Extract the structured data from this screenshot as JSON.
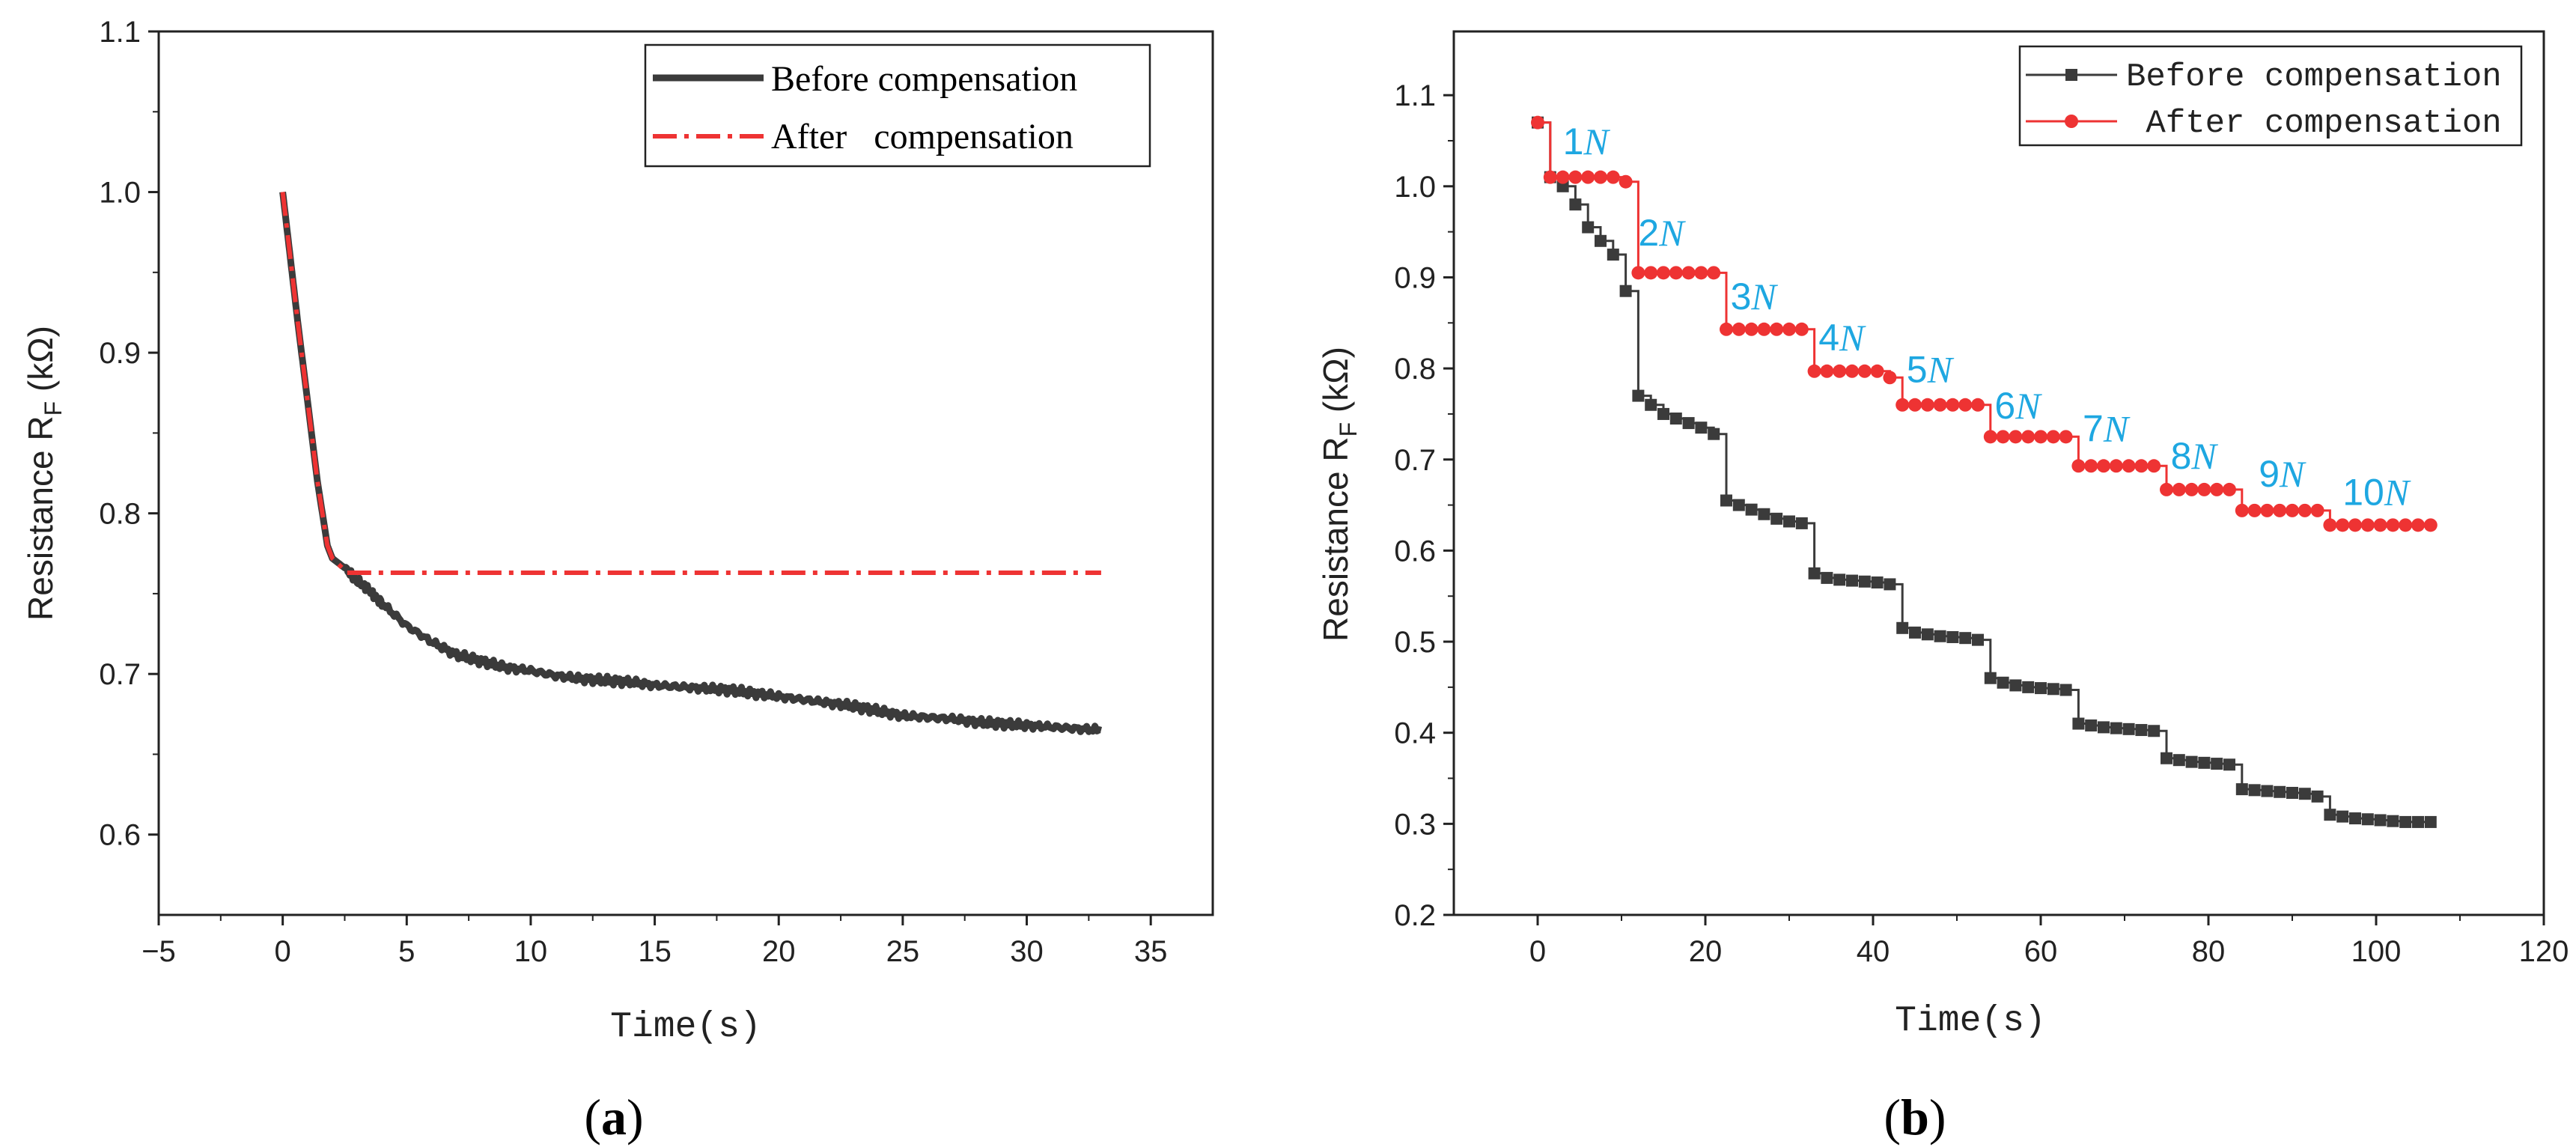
{
  "figure": {
    "panel_a_label": "(a)",
    "panel_b_label": "(b)"
  },
  "colors": {
    "before": "#3b3b3b",
    "after": "#ee3333",
    "annotation": "#1EA7E1",
    "axis": "#222222"
  },
  "chart_data": [
    {
      "id": "a",
      "type": "line",
      "title": "",
      "xlabel": "Time(s)",
      "ylabel": "Resistance  R",
      "ylabel_sub": "F",
      "ylabel_unit": " (kΩ)",
      "xlim": [
        -5,
        37.5
      ],
      "ylim": [
        0.55,
        1.1
      ],
      "xticks": [
        -5,
        0,
        5,
        10,
        15,
        20,
        25,
        30,
        35
      ],
      "yticks": [
        0.6,
        0.7,
        0.8,
        0.9,
        1.0,
        1.1
      ],
      "xtick_labels": [
        "−5",
        "0",
        "5",
        "10",
        "15",
        "20",
        "25",
        "30",
        "35"
      ],
      "ytick_labels": [
        "0.6",
        "0.7",
        "0.8",
        "0.9",
        "1.0",
        "1.1"
      ],
      "legend": {
        "position": "top-right",
        "entries": [
          "Before compensation",
          "After   compensation"
        ]
      },
      "series": [
        {
          "name": "Before compensation",
          "style": "solid-thick",
          "x": [
            0,
            0.3,
            0.6,
            1.0,
            1.4,
            1.8,
            2.0,
            2.5,
            3.0,
            3.5,
            4.0,
            5.0,
            6.0,
            7.0,
            8.0,
            9.0,
            10.0,
            11.0,
            12.0,
            13.0,
            14.0,
            15.0,
            16.0,
            17.0,
            18.0,
            19.0,
            20.0,
            21.0,
            22.0,
            23.0,
            24.0,
            25.0,
            26.0,
            27.0,
            28.0,
            29.0,
            30.0,
            31.0,
            32.0,
            33.0
          ],
          "y": [
            1.0,
            0.96,
            0.92,
            0.87,
            0.82,
            0.78,
            0.772,
            0.766,
            0.758,
            0.752,
            0.744,
            0.73,
            0.72,
            0.712,
            0.708,
            0.704,
            0.702,
            0.699,
            0.697,
            0.696,
            0.695,
            0.693,
            0.692,
            0.691,
            0.69,
            0.688,
            0.686,
            0.684,
            0.682,
            0.68,
            0.677,
            0.674,
            0.673,
            0.672,
            0.67,
            0.669,
            0.668,
            0.667,
            0.666,
            0.665
          ]
        },
        {
          "name": "After   compensation",
          "style": "dash-dot",
          "x": [
            0,
            0.3,
            0.6,
            1.0,
            1.4,
            1.8,
            2.0,
            2.6,
            33.0
          ],
          "y": [
            1.0,
            0.96,
            0.92,
            0.87,
            0.82,
            0.78,
            0.772,
            0.763,
            0.763
          ]
        }
      ]
    },
    {
      "id": "b",
      "type": "line",
      "title": "",
      "xlabel": "Time(s)",
      "ylabel": "Resistance R",
      "ylabel_sub": "F",
      "ylabel_unit": " (kΩ)",
      "xlim": [
        -10,
        120
      ],
      "ylim": [
        0.2,
        1.17
      ],
      "xticks": [
        0,
        20,
        40,
        60,
        80,
        100,
        120
      ],
      "yticks": [
        0.2,
        0.3,
        0.4,
        0.5,
        0.6,
        0.7,
        0.8,
        0.9,
        1.0,
        1.1
      ],
      "xtick_labels": [
        "0",
        "20",
        "40",
        "60",
        "80",
        "100",
        "120"
      ],
      "ytick_labels": [
        "0.2",
        "0.3",
        "0.4",
        "0.5",
        "0.6",
        "0.7",
        "0.8",
        "0.9",
        "1.0",
        "1.1"
      ],
      "legend": {
        "position": "top-right",
        "entries": [
          "Before compensation",
          " After compensation"
        ]
      },
      "annotations": [
        {
          "text": "1",
          "unit": "N",
          "x": 3,
          "y": 1.035
        },
        {
          "text": "2",
          "unit": "N",
          "x": 12,
          "y": 0.935
        },
        {
          "text": "3",
          "unit": "N",
          "x": 23,
          "y": 0.865
        },
        {
          "text": "4",
          "unit": "N",
          "x": 33.5,
          "y": 0.82
        },
        {
          "text": "5",
          "unit": "N",
          "x": 44,
          "y": 0.785
        },
        {
          "text": "6",
          "unit": "N",
          "x": 54.5,
          "y": 0.745
        },
        {
          "text": "7",
          "unit": "N",
          "x": 65,
          "y": 0.72
        },
        {
          "text": "8",
          "unit": "N",
          "x": 75.5,
          "y": 0.69
        },
        {
          "text": "9",
          "unit": "N",
          "x": 86,
          "y": 0.67
        },
        {
          "text": "10",
          "unit": "N",
          "x": 96,
          "y": 0.65
        }
      ],
      "series": [
        {
          "name": "Before compensation",
          "marker": "square",
          "x": [
            0,
            1.5,
            3,
            4.5,
            6,
            7.5,
            9,
            10.5,
            12,
            13.5,
            15,
            16.5,
            18,
            19.5,
            21,
            22.5,
            24,
            25.5,
            27,
            28.5,
            30,
            31.5,
            33,
            34.5,
            36,
            37.5,
            39,
            40.5,
            42,
            43.5,
            45,
            46.5,
            48,
            49.5,
            51,
            52.5,
            54,
            55.5,
            57,
            58.5,
            60,
            61.5,
            63,
            64.5,
            66,
            67.5,
            69,
            70.5,
            72,
            73.5,
            75,
            76.5,
            78,
            79.5,
            81,
            82.5,
            84,
            85.5,
            87,
            88.5,
            90,
            91.5,
            93,
            94.5,
            96,
            97.5,
            99,
            100.5,
            102,
            103.5,
            105,
            106.5
          ],
          "y": [
            1.07,
            1.01,
            1.0,
            0.98,
            0.955,
            0.94,
            0.925,
            0.885,
            0.77,
            0.76,
            0.75,
            0.745,
            0.74,
            0.735,
            0.728,
            0.655,
            0.65,
            0.645,
            0.64,
            0.635,
            0.632,
            0.63,
            0.575,
            0.57,
            0.568,
            0.567,
            0.566,
            0.565,
            0.563,
            0.515,
            0.51,
            0.508,
            0.506,
            0.505,
            0.504,
            0.502,
            0.46,
            0.455,
            0.452,
            0.45,
            0.449,
            0.448,
            0.447,
            0.41,
            0.408,
            0.406,
            0.405,
            0.404,
            0.403,
            0.402,
            0.372,
            0.37,
            0.368,
            0.367,
            0.366,
            0.365,
            0.338,
            0.337,
            0.336,
            0.335,
            0.334,
            0.333,
            0.33,
            0.31,
            0.308,
            0.306,
            0.305,
            0.304,
            0.303,
            0.302,
            0.302,
            0.302
          ]
        },
        {
          "name": " After compensation",
          "marker": "circle",
          "x": [
            0,
            1.5,
            3,
            4.5,
            6,
            7.5,
            9,
            10.5,
            12,
            13.5,
            15,
            16.5,
            18,
            19.5,
            21,
            22.5,
            24,
            25.5,
            27,
            28.5,
            30,
            31.5,
            33,
            34.5,
            36,
            37.5,
            39,
            40.5,
            42,
            43.5,
            45,
            46.5,
            48,
            49.5,
            51,
            52.5,
            54,
            55.5,
            57,
            58.5,
            60,
            61.5,
            63,
            64.5,
            66,
            67.5,
            69,
            70.5,
            72,
            73.5,
            75,
            76.5,
            78,
            79.5,
            81,
            82.5,
            84,
            85.5,
            87,
            88.5,
            90,
            91.5,
            93,
            94.5,
            96,
            97.5,
            99,
            100.5,
            102,
            103.5,
            105,
            106.5
          ],
          "y": [
            1.07,
            1.01,
            1.01,
            1.01,
            1.01,
            1.01,
            1.01,
            1.005,
            0.905,
            0.905,
            0.905,
            0.905,
            0.905,
            0.905,
            0.905,
            0.843,
            0.843,
            0.843,
            0.843,
            0.843,
            0.843,
            0.843,
            0.797,
            0.797,
            0.797,
            0.797,
            0.797,
            0.797,
            0.79,
            0.76,
            0.76,
            0.76,
            0.76,
            0.76,
            0.76,
            0.76,
            0.725,
            0.725,
            0.725,
            0.725,
            0.725,
            0.725,
            0.725,
            0.693,
            0.693,
            0.693,
            0.693,
            0.693,
            0.693,
            0.693,
            0.667,
            0.667,
            0.667,
            0.667,
            0.667,
            0.667,
            0.644,
            0.644,
            0.644,
            0.644,
            0.644,
            0.644,
            0.644,
            0.628,
            0.628,
            0.628,
            0.628,
            0.628,
            0.628,
            0.628,
            0.628,
            0.628
          ]
        }
      ]
    }
  ]
}
